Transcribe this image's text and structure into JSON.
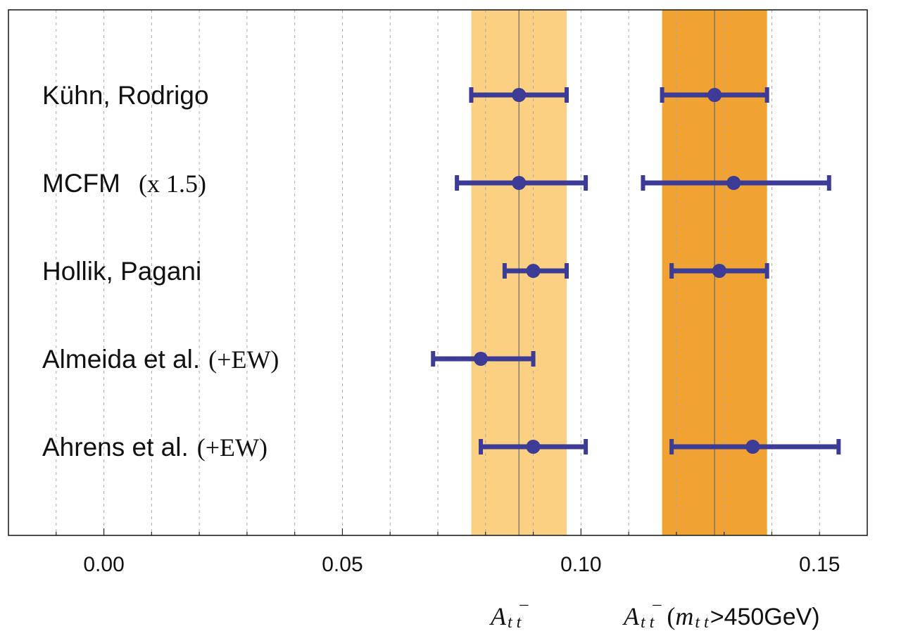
{
  "chart_data": {
    "type": "errorbar",
    "xlim": [
      -0.02,
      0.16
    ],
    "x_ticks": [
      {
        "value": 0.0,
        "label": "0.00"
      },
      {
        "value": 0.05,
        "label": "0.05"
      },
      {
        "value": 0.1,
        "label": "0.10"
      },
      {
        "value": 0.15,
        "label": "0.15"
      }
    ],
    "grid": "vertical dashed",
    "bands": [
      {
        "center": 0.087,
        "low": 0.077,
        "high": 0.097,
        "color": "#fbd083"
      },
      {
        "center": 0.128,
        "low": 0.117,
        "high": 0.139,
        "color": "#f0a232"
      }
    ],
    "band_labels": {
      "inclusive": {
        "main": "A",
        "sub": "t t",
        "bar": "–"
      },
      "high_mass": {
        "main": "A",
        "sub": "t t",
        "bar": "–",
        "cut_open": "(",
        "cut_var": "m",
        "cut_sub": "t t",
        "cut_text": ">450GeV)"
      }
    },
    "marker_color": "#3c3c96",
    "rows": [
      {
        "label": "Kühn, Rodrigo",
        "label_suffix": "",
        "inclusive": {
          "value": 0.087,
          "low": 0.077,
          "high": 0.097
        },
        "high_mass": {
          "value": 0.128,
          "low": 0.117,
          "high": 0.139
        }
      },
      {
        "label": "MCFM",
        "label_suffix": "(x 1.5)",
        "inclusive": {
          "value": 0.087,
          "low": 0.074,
          "high": 0.101
        },
        "high_mass": {
          "value": 0.132,
          "low": 0.113,
          "high": 0.152
        }
      },
      {
        "label": "Hollik, Pagani",
        "label_suffix": "",
        "inclusive": {
          "value": 0.09,
          "low": 0.084,
          "high": 0.097
        },
        "high_mass": {
          "value": 0.129,
          "low": 0.119,
          "high": 0.139
        }
      },
      {
        "label": "Almeida et al.",
        "label_suffix": "(+EW)",
        "inclusive": {
          "value": 0.079,
          "low": 0.069,
          "high": 0.09
        },
        "high_mass": null
      },
      {
        "label": "Ahrens et al.",
        "label_suffix": "(+EW)",
        "inclusive": {
          "value": 0.09,
          "low": 0.079,
          "high": 0.101
        },
        "high_mass": {
          "value": 0.136,
          "low": 0.119,
          "high": 0.154
        }
      }
    ]
  }
}
